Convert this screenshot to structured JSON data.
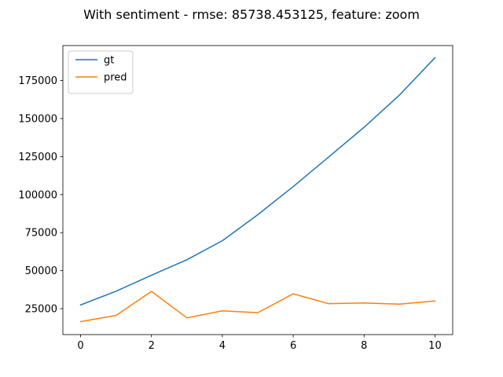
{
  "chart_data": {
    "type": "line",
    "title": "With sentiment - rmse: 85738.453125, feature: zoom",
    "xlabel": "",
    "ylabel": "",
    "x": [
      0,
      1,
      2,
      3,
      4,
      5,
      6,
      7,
      8,
      9,
      10
    ],
    "xlim": [
      -0.5,
      10.5
    ],
    "ylim": [
      8000,
      198000
    ],
    "xticks": [
      0,
      2,
      4,
      6,
      8,
      10
    ],
    "yticks": [
      25000,
      50000,
      75000,
      100000,
      125000,
      150000,
      175000
    ],
    "grid": false,
    "legend_position": "upper-left",
    "series": [
      {
        "name": "gt",
        "color": "#1f77b4",
        "values": [
          27500,
          36500,
          47000,
          57200,
          69700,
          86800,
          105300,
          124700,
          144300,
          165500,
          190000
        ]
      },
      {
        "name": "pred",
        "color": "#ff7f0e",
        "values": [
          16500,
          20600,
          36400,
          19000,
          23600,
          22400,
          34800,
          28300,
          28800,
          28000,
          30100
        ]
      }
    ]
  }
}
